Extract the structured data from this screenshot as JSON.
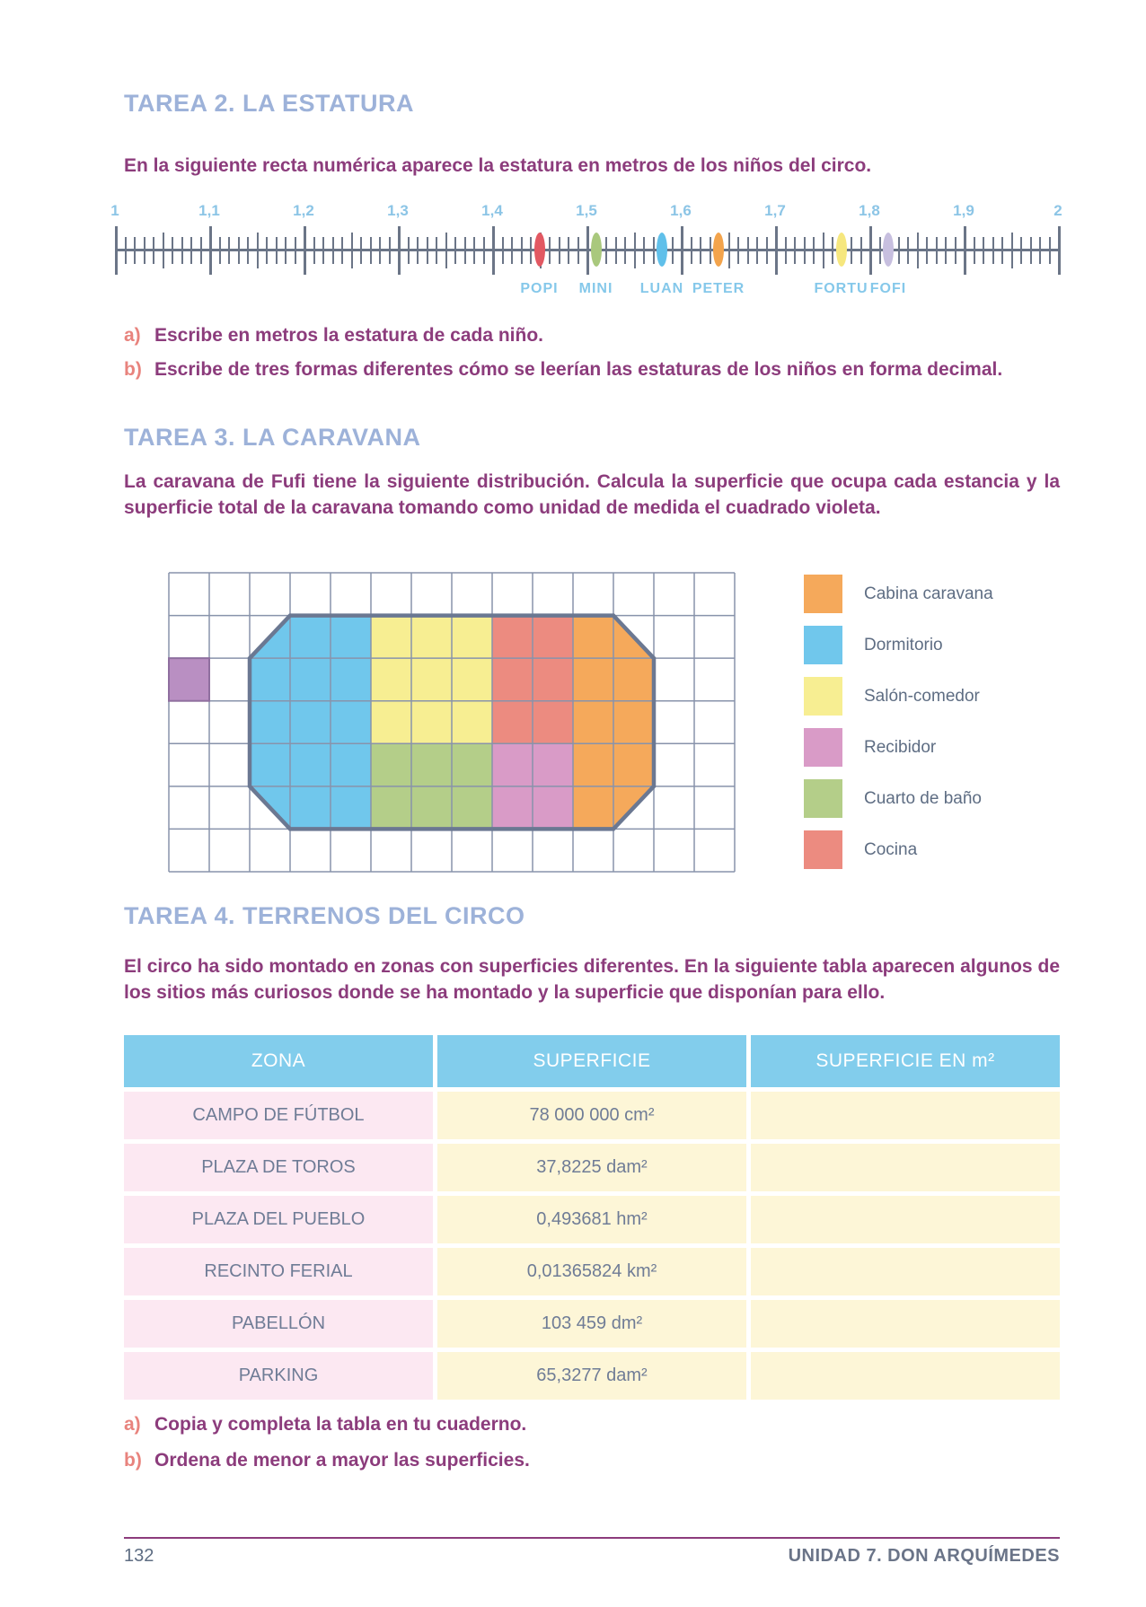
{
  "page": {
    "number": "132",
    "unit_label": "UNIDAD 7. DON ARQUÍMEDES"
  },
  "tarea2": {
    "title": "TAREA 2. LA ESTATURA",
    "intro": "En la siguiente recta numérica aparece la estatura en metros de los niños del circo.",
    "number_line": {
      "min": 1,
      "max": 2,
      "tick_labels": [
        "1",
        "1,1",
        "1,2",
        "1,3",
        "1,4",
        "1,5",
        "1,6",
        "1,7",
        "1,8",
        "1,9",
        "2"
      ],
      "children": [
        {
          "name": "POPI",
          "value": 1.45,
          "color": "#e25862"
        },
        {
          "name": "MINI",
          "value": 1.51,
          "color": "#a9c87d"
        },
        {
          "name": "LUAN",
          "value": 1.58,
          "color": "#60c0ea"
        },
        {
          "name": "PETER",
          "value": 1.64,
          "color": "#f3a44c"
        },
        {
          "name": "FORTU",
          "value": 1.77,
          "color": "#f6e77e"
        },
        {
          "name": "FOFI",
          "value": 1.82,
          "color": "#c7bfdf"
        }
      ]
    },
    "items": [
      {
        "marker": "a)",
        "text": "Escribe en metros la estatura de cada niño."
      },
      {
        "marker": "b)",
        "text": "Escribe de tres formas diferentes cómo se leerían las estaturas de los niños en forma decimal."
      }
    ]
  },
  "tarea3": {
    "title": "TAREA 3. LA CARAVANA",
    "intro": "La caravana de Fufi tiene la siguiente distribución. Calcula la superficie que ocupa cada estancia y la superficie total de la caravana tomando como unidad de medida el cuadrado violeta.",
    "grid": {
      "cols": 14,
      "rows": 7,
      "cells": [
        "..............",
        "..bBBYYYSSOo..",
        "V.BBBYYYSSOO..",
        "..BBBYYYSSOO..",
        "..BBBGGGPPOO..",
        "..dBBGGGPPOq..",
        ".............."
      ]
    },
    "colors": {
      "B": "#70c7ec",
      "Y": "#f7ee92",
      "S": "#ec8b80",
      "O": "#f5a95b",
      "G": "#b4ce89",
      "P": "#d99bc7",
      "V": "#b98fc2",
      "grid_line": "#8893ab",
      "outline": "#6b7892",
      "violet_border": "#8f6f9f"
    },
    "legend": [
      {
        "label": "Cabina caravana",
        "color": "#f5a95b"
      },
      {
        "label": "Dormitorio",
        "color": "#70c7ec"
      },
      {
        "label": "Salón-comedor",
        "color": "#f7ee92"
      },
      {
        "label": "Recibidor",
        "color": "#d99bc7"
      },
      {
        "label": "Cuarto de baño",
        "color": "#b4ce89"
      },
      {
        "label": "Cocina",
        "color": "#ec8b80"
      }
    ]
  },
  "tarea4": {
    "title": "TAREA 4. TERRENOS DEL CIRCO",
    "intro": "El circo ha sido montado en zonas con superficies diferentes. En la siguiente tabla aparecen algunos de los sitios más curiosos donde se ha montado y la superficie que disponían para ello.",
    "table": {
      "headers": [
        "ZONA",
        "SUPERFICIE",
        "SUPERFICIE EN m²"
      ],
      "rows": [
        {
          "zona": "CAMPO DE FÚTBOL",
          "superficie": "78 000 000 cm²",
          "m2": ""
        },
        {
          "zona": "PLAZA DE TOROS",
          "superficie": "37,8225 dam²",
          "m2": ""
        },
        {
          "zona": "PLAZA DEL PUEBLO",
          "superficie": "0,493681 hm²",
          "m2": ""
        },
        {
          "zona": "RECINTO FERIAL",
          "superficie": "0,01365824 km²",
          "m2": ""
        },
        {
          "zona": "PABELLÓN",
          "superficie": "103 459 dm²",
          "m2": ""
        },
        {
          "zona": "PARKING",
          "superficie": "65,3277 dam²",
          "m2": ""
        }
      ]
    },
    "items": [
      {
        "marker": "a)",
        "text": "Copia y completa la tabla en tu cuaderno."
      },
      {
        "marker": "b)",
        "text": "Ordena de menor a mayor las superficies."
      }
    ]
  }
}
